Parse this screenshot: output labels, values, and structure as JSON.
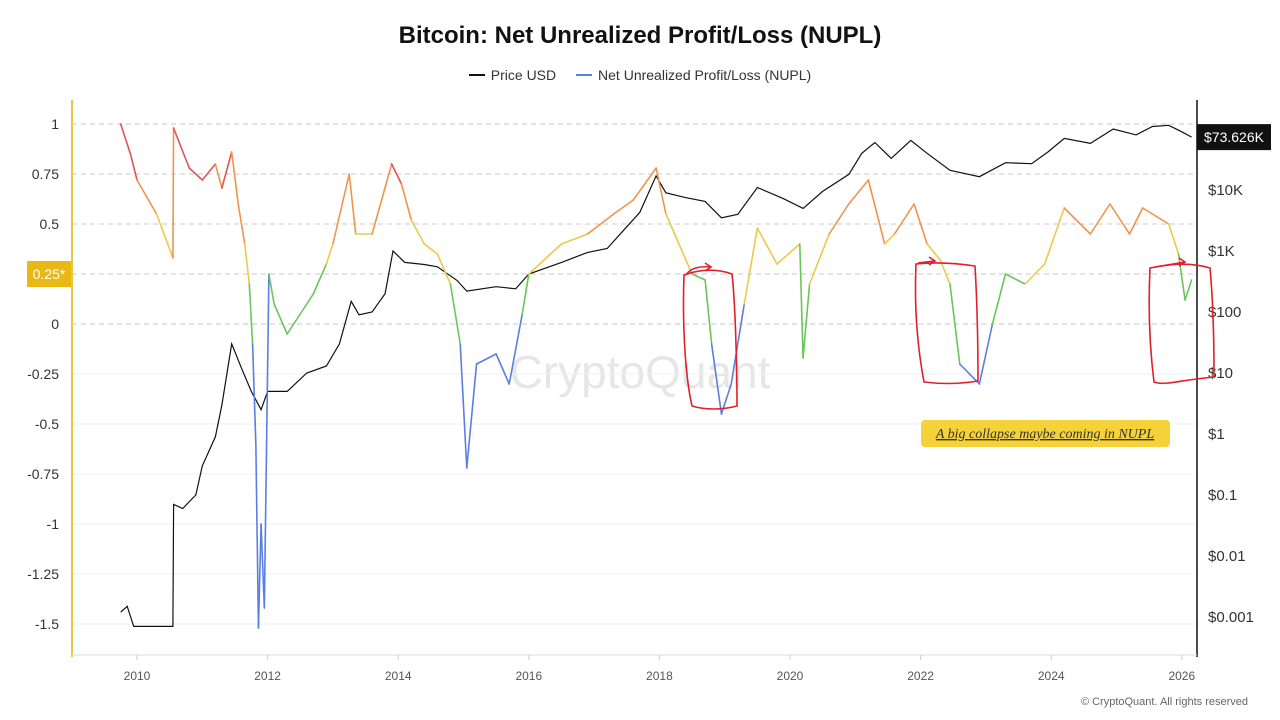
{
  "chart_data": {
    "type": "line",
    "title": "Bitcoin: Net Unrealized Profit/Loss (NUPL)",
    "legend_position": "top",
    "grid": true,
    "series": [
      {
        "name": "Price USD",
        "axis": "right",
        "scale": "log",
        "color": "#111111",
        "points": [
          [
            2009.75,
            0.0012
          ],
          [
            2009.85,
            0.0015
          ],
          [
            2009.95,
            0.0007
          ],
          [
            2010.55,
            0.0007
          ],
          [
            2010.56,
            0.07
          ],
          [
            2010.7,
            0.06
          ],
          [
            2010.9,
            0.1
          ],
          [
            2011.0,
            0.3
          ],
          [
            2011.2,
            0.9
          ],
          [
            2011.3,
            3
          ],
          [
            2011.45,
            30
          ],
          [
            2011.6,
            12
          ],
          [
            2011.75,
            5
          ],
          [
            2011.9,
            2.5
          ],
          [
            2012.0,
            5
          ],
          [
            2012.3,
            5
          ],
          [
            2012.6,
            10
          ],
          [
            2012.9,
            13
          ],
          [
            2013.1,
            30
          ],
          [
            2013.28,
            150
          ],
          [
            2013.4,
            90
          ],
          [
            2013.6,
            100
          ],
          [
            2013.8,
            200
          ],
          [
            2013.92,
            1000
          ],
          [
            2014.1,
            650
          ],
          [
            2014.4,
            600
          ],
          [
            2014.6,
            550
          ],
          [
            2014.9,
            330
          ],
          [
            2015.05,
            220
          ],
          [
            2015.5,
            260
          ],
          [
            2015.8,
            240
          ],
          [
            2016.0,
            420
          ],
          [
            2016.5,
            650
          ],
          [
            2016.9,
            950
          ],
          [
            2017.2,
            1100
          ],
          [
            2017.5,
            2500
          ],
          [
            2017.7,
            4300
          ],
          [
            2017.95,
            17000
          ],
          [
            2018.1,
            9000
          ],
          [
            2018.4,
            7500
          ],
          [
            2018.7,
            6500
          ],
          [
            2018.95,
            3500
          ],
          [
            2019.2,
            4000
          ],
          [
            2019.5,
            11000
          ],
          [
            2019.9,
            7200
          ],
          [
            2020.2,
            5000
          ],
          [
            2020.5,
            9500
          ],
          [
            2020.9,
            18000
          ],
          [
            2021.1,
            40000
          ],
          [
            2021.3,
            60000
          ],
          [
            2021.55,
            33000
          ],
          [
            2021.85,
            65000
          ],
          [
            2022.1,
            40000
          ],
          [
            2022.45,
            21000
          ],
          [
            2022.9,
            16500
          ],
          [
            2023.3,
            28000
          ],
          [
            2023.7,
            27000
          ],
          [
            2023.95,
            42000
          ],
          [
            2024.2,
            70000
          ],
          [
            2024.6,
            58000
          ],
          [
            2024.95,
            100000
          ],
          [
            2025.3,
            80000
          ],
          [
            2025.55,
            110000
          ],
          [
            2025.8,
            115000
          ],
          [
            2026.0,
            90000
          ],
          [
            2026.15,
            73626
          ]
        ]
      },
      {
        "name": "Net Unrealized Profit/Loss (NUPL)",
        "axis": "left",
        "points": [
          [
            2009.75,
            1.0
          ],
          [
            2009.9,
            0.85
          ],
          [
            2010.0,
            0.72
          ],
          [
            2010.3,
            0.55
          ],
          [
            2010.55,
            0.33
          ],
          [
            2010.56,
            0.98
          ],
          [
            2010.8,
            0.78
          ],
          [
            2011.0,
            0.72
          ],
          [
            2011.2,
            0.8
          ],
          [
            2011.3,
            0.68
          ],
          [
            2011.45,
            0.86
          ],
          [
            2011.55,
            0.6
          ],
          [
            2011.65,
            0.4
          ],
          [
            2011.72,
            0.2
          ],
          [
            2011.77,
            -0.1
          ],
          [
            2011.82,
            -0.6
          ],
          [
            2011.86,
            -1.52
          ],
          [
            2011.9,
            -1.0
          ],
          [
            2011.95,
            -1.42
          ],
          [
            2012.02,
            0.25
          ],
          [
            2012.1,
            0.1
          ],
          [
            2012.3,
            -0.05
          ],
          [
            2012.5,
            0.05
          ],
          [
            2012.7,
            0.15
          ],
          [
            2012.9,
            0.3
          ],
          [
            2013.0,
            0.4
          ],
          [
            2013.25,
            0.75
          ],
          [
            2013.35,
            0.45
          ],
          [
            2013.6,
            0.45
          ],
          [
            2013.9,
            0.8
          ],
          [
            2014.05,
            0.7
          ],
          [
            2014.2,
            0.52
          ],
          [
            2014.4,
            0.4
          ],
          [
            2014.6,
            0.35
          ],
          [
            2014.8,
            0.2
          ],
          [
            2014.95,
            -0.1
          ],
          [
            2015.05,
            -0.72
          ],
          [
            2015.2,
            -0.2
          ],
          [
            2015.5,
            -0.15
          ],
          [
            2015.7,
            -0.3
          ],
          [
            2015.9,
            0.05
          ],
          [
            2016.0,
            0.25
          ],
          [
            2016.5,
            0.4
          ],
          [
            2016.9,
            0.45
          ],
          [
            2017.3,
            0.55
          ],
          [
            2017.6,
            0.62
          ],
          [
            2017.95,
            0.78
          ],
          [
            2018.1,
            0.55
          ],
          [
            2018.3,
            0.4
          ],
          [
            2018.5,
            0.25
          ],
          [
            2018.7,
            0.22
          ],
          [
            2018.8,
            -0.1
          ],
          [
            2018.95,
            -0.45
          ],
          [
            2019.1,
            -0.3
          ],
          [
            2019.3,
            0.1
          ],
          [
            2019.5,
            0.48
          ],
          [
            2019.8,
            0.3
          ],
          [
            2020.15,
            0.4
          ],
          [
            2020.2,
            -0.17
          ],
          [
            2020.3,
            0.2
          ],
          [
            2020.6,
            0.45
          ],
          [
            2020.9,
            0.6
          ],
          [
            2021.2,
            0.72
          ],
          [
            2021.45,
            0.4
          ],
          [
            2021.6,
            0.45
          ],
          [
            2021.9,
            0.6
          ],
          [
            2022.1,
            0.4
          ],
          [
            2022.3,
            0.32
          ],
          [
            2022.45,
            0.2
          ],
          [
            2022.6,
            -0.2
          ],
          [
            2022.9,
            -0.3
          ],
          [
            2023.1,
            0.0
          ],
          [
            2023.3,
            0.25
          ],
          [
            2023.6,
            0.2
          ],
          [
            2023.9,
            0.3
          ],
          [
            2024.2,
            0.58
          ],
          [
            2024.6,
            0.45
          ],
          [
            2024.9,
            0.6
          ],
          [
            2025.2,
            0.45
          ],
          [
            2025.4,
            0.58
          ],
          [
            2025.8,
            0.5
          ],
          [
            2025.95,
            0.35
          ],
          [
            2026.05,
            0.12
          ],
          [
            2026.15,
            0.22
          ]
        ]
      }
    ],
    "x_ticks": [
      "2010",
      "2012",
      "2014",
      "2016",
      "2018",
      "2020",
      "2022",
      "2024",
      "2026"
    ],
    "xlim": [
      2009.5,
      2026.25
    ],
    "left_ticks": [
      "1",
      "0.75",
      "0.5",
      "0",
      "-0.25",
      "-0.5",
      "-0.75",
      "-1",
      "-1.25",
      "-1.5"
    ],
    "left_highlight": "0.25*",
    "ylim_left": [
      -1.66,
      1.12
    ],
    "right_ticks": [
      "$10K",
      "$1K",
      "$100",
      "$10",
      "$1",
      "$0.1",
      "$0.01",
      "$0.001"
    ],
    "right_current": "$73.626K",
    "nupl_colors": {
      "euphoria": "#e05555",
      "belief": "#f0944a",
      "optimism": "#ecc94b",
      "hope": "#6cc55a",
      "capitulation": "#5b7fe0"
    },
    "annotation": "A big collapse maybe coming in NUPL"
  },
  "watermark": "CryptoQuant",
  "copyright": "© CryptoQuant. All rights reserved"
}
